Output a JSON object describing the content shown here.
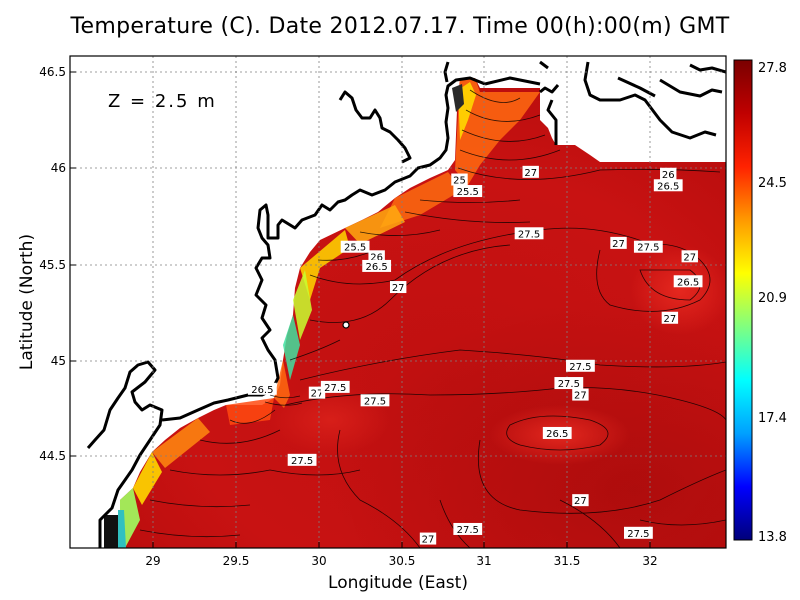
{
  "title": "Temperature (C). Date 2012.07.17. Time 00(h):00(m) GMT",
  "depth_label": "Z  =  2.5  m",
  "axes": {
    "xlabel": "Longitude (East)",
    "ylabel": "Latitude (North)",
    "xticks": [
      "29",
      "29.5",
      "30",
      "30.5",
      "31",
      "31.5",
      "32"
    ],
    "yticks": [
      "46.5",
      "46",
      "45.5",
      "45",
      "44.5"
    ],
    "xrange": [
      28.55,
      32.45
    ],
    "yrange": [
      44.07,
      46.55
    ]
  },
  "colorbar": {
    "ticks": [
      "27.8",
      "24.5",
      "20.9",
      "17.4",
      "13.8"
    ],
    "min": 13.8,
    "max": 27.8,
    "colors": [
      "#00007a",
      "#0000ff",
      "#00a0ff",
      "#00ffff",
      "#80ff80",
      "#ffff00",
      "#ff9900",
      "#ff2200",
      "#c00000",
      "#7a0000"
    ]
  },
  "contour_labels": [
    {
      "text": "27",
      "lon": 31.28,
      "lat": 45.98
    },
    {
      "text": "25",
      "lon": 30.85,
      "lat": 45.94
    },
    {
      "text": "25.5",
      "lon": 30.9,
      "lat": 45.88
    },
    {
      "text": "26",
      "lon": 32.11,
      "lat": 45.97
    },
    {
      "text": "26.5",
      "lon": 32.11,
      "lat": 45.91
    },
    {
      "text": "27.5",
      "lon": 31.27,
      "lat": 45.66
    },
    {
      "text": "27",
      "lon": 31.81,
      "lat": 45.61
    },
    {
      "text": "27.5",
      "lon": 31.99,
      "lat": 45.59
    },
    {
      "text": "27",
      "lon": 32.24,
      "lat": 45.54
    },
    {
      "text": "26.5",
      "lon": 32.23,
      "lat": 45.41
    },
    {
      "text": "27",
      "lon": 32.12,
      "lat": 45.22
    },
    {
      "text": "25.5",
      "lon": 30.22,
      "lat": 45.59
    },
    {
      "text": "26",
      "lon": 30.35,
      "lat": 45.54
    },
    {
      "text": "26.5",
      "lon": 30.35,
      "lat": 45.49
    },
    {
      "text": "27",
      "lon": 30.48,
      "lat": 45.38
    },
    {
      "text": "27.5",
      "lon": 31.58,
      "lat": 44.97
    },
    {
      "text": "27.5",
      "lon": 31.51,
      "lat": 44.88
    },
    {
      "text": "27",
      "lon": 31.58,
      "lat": 44.82
    },
    {
      "text": "26.5",
      "lon": 31.44,
      "lat": 44.62
    },
    {
      "text": "27",
      "lon": 31.58,
      "lat": 44.27
    },
    {
      "text": "26.5",
      "lon": 29.66,
      "lat": 44.85
    },
    {
      "text": "27",
      "lon": 29.99,
      "lat": 44.83
    },
    {
      "text": "27.5",
      "lon": 30.1,
      "lat": 44.86
    },
    {
      "text": "27.5",
      "lon": 30.34,
      "lat": 44.79
    },
    {
      "text": "27.5",
      "lon": 29.9,
      "lat": 44.48
    },
    {
      "text": "27.5",
      "lon": 30.9,
      "lat": 44.12
    },
    {
      "text": "27",
      "lon": 30.66,
      "lat": 44.07
    },
    {
      "text": "27.5",
      "lon": 31.93,
      "lat": 44.1
    }
  ]
}
